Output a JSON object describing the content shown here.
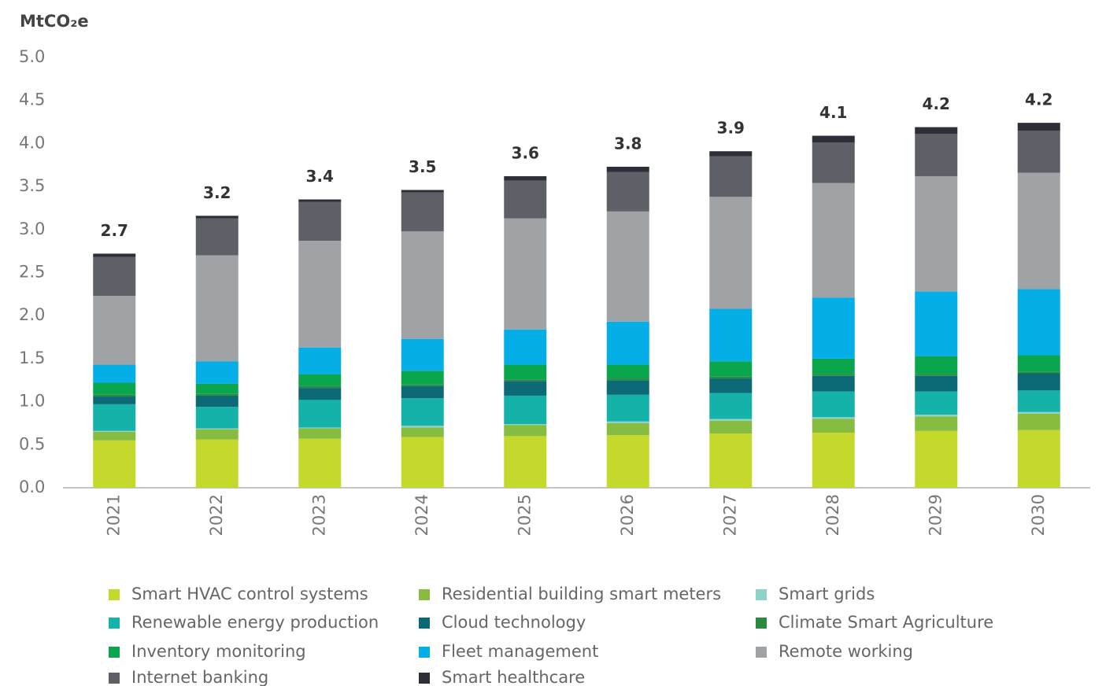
{
  "chart_data": {
    "type": "stacked_bar",
    "y_label": "MtCO₂e",
    "categories": [
      "2021",
      "2022",
      "2023",
      "2024",
      "2025",
      "2026",
      "2027",
      "2028",
      "2029",
      "2030"
    ],
    "totals": [
      2.7,
      3.2,
      3.4,
      3.5,
      3.6,
      3.8,
      3.9,
      4.1,
      4.2,
      4.2
    ],
    "ylim": [
      0,
      5
    ],
    "yticks": [
      {
        "value": 0,
        "label": "0.0"
      },
      {
        "value": 0.5,
        "label": "0.5"
      },
      {
        "value": 1,
        "label": "1.0"
      },
      {
        "value": 1.5,
        "label": "1.5"
      },
      {
        "value": 2,
        "label": "2.0"
      },
      {
        "value": 2.5,
        "label": "2.5"
      },
      {
        "value": 3,
        "label": "3.0"
      },
      {
        "value": 3.5,
        "label": "3.5"
      },
      {
        "value": 4,
        "label": "4.0"
      },
      {
        "value": 4.5,
        "label": "4.5"
      },
      {
        "value": 5,
        "label": "5.0"
      }
    ],
    "series": [
      {
        "name": "Smart HVAC control systems",
        "color": "#c5d92d",
        "values": [
          0.55,
          0.56,
          0.57,
          0.59,
          0.6,
          0.61,
          0.63,
          0.64,
          0.66,
          0.67
        ]
      },
      {
        "name": "Residential building smart meters",
        "color": "#86bc3f",
        "values": [
          0.1,
          0.12,
          0.12,
          0.11,
          0.13,
          0.14,
          0.15,
          0.16,
          0.17,
          0.19
        ]
      },
      {
        "name": "Smart grids",
        "color": "#8dd3c7",
        "values": [
          0.01,
          0.01,
          0.01,
          0.02,
          0.01,
          0.02,
          0.02,
          0.02,
          0.02,
          0.02
        ]
      },
      {
        "name": "Renewable energy production",
        "color": "#14b2a8",
        "values": [
          0.31,
          0.25,
          0.32,
          0.32,
          0.33,
          0.31,
          0.3,
          0.3,
          0.27,
          0.25
        ]
      },
      {
        "name": "Cloud technology",
        "color": "#0b6a75",
        "values": [
          0.09,
          0.13,
          0.14,
          0.14,
          0.17,
          0.17,
          0.17,
          0.18,
          0.18,
          0.2
        ]
      },
      {
        "name": "Climate Smart Agriculture",
        "color": "#2b8a3e",
        "values": [
          0.02,
          0.02,
          0.02,
          0.02,
          0.02,
          0.02,
          0.02,
          0.02,
          0.02,
          0.02
        ]
      },
      {
        "name": "Inventory monitoring",
        "color": "#0aa64d",
        "values": [
          0.14,
          0.12,
          0.14,
          0.16,
          0.17,
          0.16,
          0.18,
          0.18,
          0.21,
          0.19
        ]
      },
      {
        "name": "Fleet management",
        "color": "#04aee6",
        "values": [
          0.21,
          0.26,
          0.31,
          0.37,
          0.41,
          0.5,
          0.61,
          0.71,
          0.75,
          0.77
        ]
      },
      {
        "name": "Remote working",
        "color": "#a0a3a5",
        "values": [
          0.8,
          1.23,
          1.24,
          1.25,
          1.29,
          1.28,
          1.3,
          1.33,
          1.34,
          1.35
        ]
      },
      {
        "name": "Internet banking",
        "color": "#5e6068",
        "values": [
          0.45,
          0.43,
          0.45,
          0.45,
          0.44,
          0.46,
          0.47,
          0.47,
          0.49,
          0.49
        ]
      },
      {
        "name": "Smart healthcare",
        "color": "#2c2f38",
        "values": [
          0.04,
          0.03,
          0.03,
          0.03,
          0.05,
          0.06,
          0.06,
          0.08,
          0.08,
          0.09
        ]
      }
    ]
  }
}
